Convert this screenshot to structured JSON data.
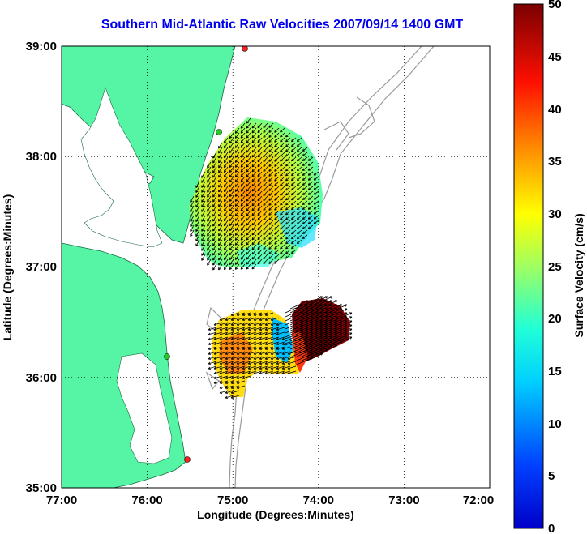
{
  "title": "Southern Mid-Atlantic Raw Velocities 2007/09/14 1400 GMT",
  "x_axis": {
    "label": "Longitude (Degrees:Minutes)",
    "ticks": [
      "77:00",
      "76:00",
      "75:00",
      "74:00",
      "73:00",
      "72:00"
    ]
  },
  "y_axis": {
    "label": "Latitude (Degrees:Minutes)",
    "ticks": [
      "39:00",
      "38:00",
      "37:00",
      "36:00",
      "35:00"
    ]
  },
  "colorbar": {
    "label": "Surface Velocity (cm/s)",
    "ticks": [
      "50",
      "45",
      "40",
      "35",
      "30",
      "25",
      "20",
      "15",
      "10",
      "5",
      "0"
    ],
    "range": [
      0,
      50
    ]
  },
  "colors": {
    "land": "#55f5a5",
    "title": "#0000ee",
    "bathymetry": "#9a9a9a",
    "station": "#ff2020",
    "station_alt": "#22cc22"
  }
}
